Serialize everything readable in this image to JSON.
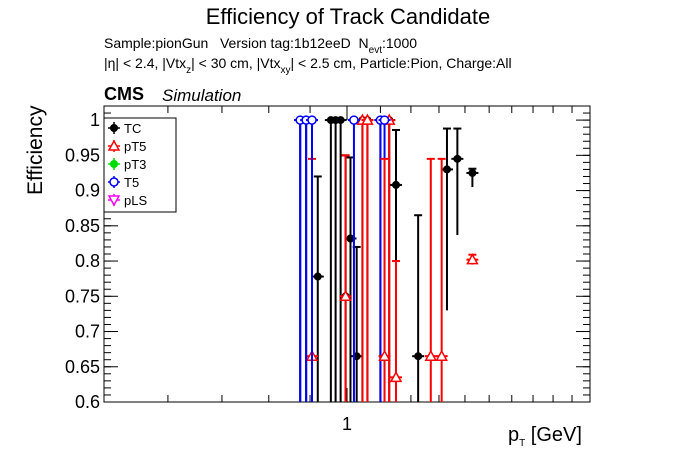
{
  "header": {
    "title": "Efficiency of Track Candidate",
    "sample_line": {
      "sample": "Sample:pionGun",
      "version": "Version tag:1b12eeD",
      "nevt_prefix": "N",
      "nevt_sub": "evt",
      "nevt_value": ":1000"
    },
    "cuts_line": {
      "p1": "|η| < 2.4, |Vtx",
      "s1": "z",
      "p2": "| < 30 cm, |Vtx",
      "s2": "xy",
      "p3": "| < 2.5 cm, Particle:Pion, Charge:All"
    },
    "cms": "CMS",
    "simulation": "Simulation"
  },
  "axes": {
    "ylabel": "Efficiency",
    "xlabel_main": "p",
    "xlabel_sub": "T",
    "xlabel_unit": " [GeV]"
  },
  "chart_data": {
    "type": "scatter",
    "title": "Efficiency of Track Candidate",
    "xlabel": "pT [GeV]",
    "ylabel": "Efficiency",
    "xscale": "log",
    "xlim": [
      0.5,
      2.0
    ],
    "ylim": [
      0.6,
      1.02
    ],
    "x_tick_labels": [
      "1"
    ],
    "y_tick_labels": [
      "0.6",
      "0.65",
      "0.7",
      "0.75",
      "0.8",
      "0.85",
      "0.9",
      "0.95",
      "1"
    ],
    "grid": false,
    "legend_position": "top-left",
    "legend": [
      "TC",
      "pT5",
      "pT3",
      "T5",
      "pLS"
    ],
    "series": [
      {
        "name": "TC",
        "color": "#000000",
        "marker": "filled-circle",
        "points": [
          {
            "x": 0.875,
            "y": 1.0,
            "el": 0.4
          },
          {
            "x": 0.89,
            "y": 1.0,
            "el": 0.4
          },
          {
            "x": 0.905,
            "y": 1.0,
            "el": 0.4
          },
          {
            "x": 0.92,
            "y": 0.778,
            "el": 0.2,
            "eh": 0.142
          },
          {
            "x": 0.955,
            "y": 1.0,
            "el": 0.4
          },
          {
            "x": 0.968,
            "y": 1.0,
            "el": 0.4
          },
          {
            "x": 0.982,
            "y": 1.0,
            "el": 0.4
          },
          {
            "x": 0.996,
            "y": 0.75,
            "el": 0.25,
            "eh": 0.2
          },
          {
            "x": 1.01,
            "y": 0.832,
            "el": 0.3,
            "eh": 0.115
          },
          {
            "x": 1.045,
            "y": 1.0,
            "el": 0.4
          },
          {
            "x": 1.028,
            "y": 0.665,
            "el": 0.1,
            "eh": 0.155
          },
          {
            "x": 1.06,
            "y": 1.0,
            "el": 0.4
          },
          {
            "x": 1.1,
            "y": 1.0,
            "el": 0.4
          },
          {
            "x": 1.128,
            "y": 1.0,
            "el": 0.4
          },
          {
            "x": 1.15,
            "y": 0.908,
            "el": 0.3,
            "eh": 0.078
          },
          {
            "x": 1.225,
            "y": 0.665,
            "el": 0.2,
            "eh": 0.2
          },
          {
            "x": 1.33,
            "y": 0.93,
            "el": 0.2,
            "eh": 0.058
          },
          {
            "x": 1.37,
            "y": 0.945,
            "el": 0.108,
            "eh": 0.043
          },
          {
            "x": 1.43,
            "y": 0.925,
            "el": 0.02,
            "eh": 0.006
          }
        ]
      },
      {
        "name": "pT5",
        "color": "#ff0000",
        "marker": "open-triangle",
        "points": [
          {
            "x": 0.905,
            "y": 0.665,
            "el": 0.2,
            "eh": 0.28
          },
          {
            "x": 0.996,
            "y": 0.75,
            "el": 0.25,
            "eh": 0.2
          },
          {
            "x": 1.045,
            "y": 1.0,
            "el": 0.4
          },
          {
            "x": 1.06,
            "y": 1.0,
            "el": 0.4
          },
          {
            "x": 1.128,
            "y": 1.0,
            "el": 0.4
          },
          {
            "x": 1.15,
            "y": 0.635,
            "el": 0.1,
            "eh": 0.165
          },
          {
            "x": 1.27,
            "y": 0.665,
            "el": 0.2,
            "eh": 0.28
          },
          {
            "x": 1.31,
            "y": 0.665,
            "el": 0.2,
            "eh": 0.28
          },
          {
            "x": 1.43,
            "y": 0.802,
            "el": 0.007,
            "eh": 0.007
          }
        ]
      },
      {
        "name": "pT3",
        "color": "#00dd00",
        "marker": "filled-cross",
        "points": []
      },
      {
        "name": "T5",
        "color": "#0000ff",
        "marker": "open-circle",
        "points": [
          {
            "x": 0.875,
            "y": 1.0,
            "el": 0.4
          },
          {
            "x": 0.89,
            "y": 1.0,
            "el": 0.4
          },
          {
            "x": 0.905,
            "y": 1.0,
            "el": 0.4
          },
          {
            "x": 1.02,
            "y": 1.0,
            "el": 0.4
          },
          {
            "x": 1.1,
            "y": 1.0,
            "el": 0.4
          },
          {
            "x": 1.113,
            "y": 1.0,
            "el": 0.4
          }
        ]
      },
      {
        "name": "pLS",
        "color": "#ff00ff",
        "marker": "open-triangle-down",
        "points": []
      }
    ],
    "extra_open_markers": [
      {
        "x": 1.113,
        "y": 0.665,
        "el": 0.2,
        "eh": 0.28,
        "color": "#ff0000"
      }
    ]
  }
}
